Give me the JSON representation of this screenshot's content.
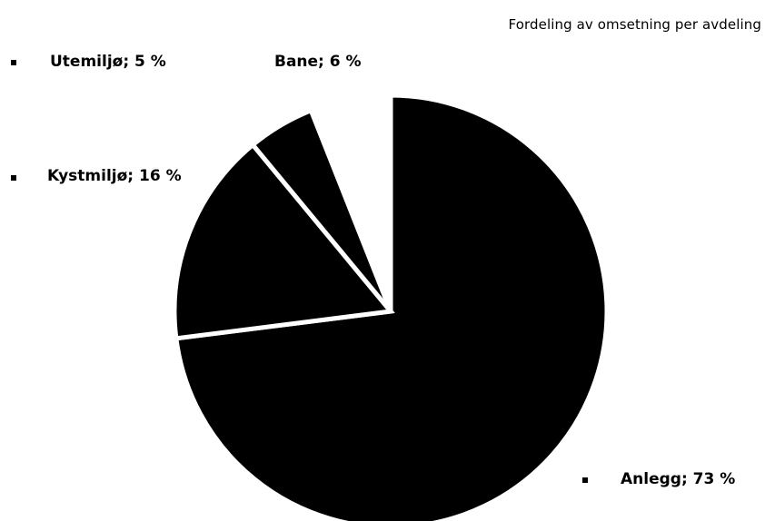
{
  "chart_data": {
    "type": "pie",
    "title": "Fordeling av omsetning per avdeling",
    "slices": [
      {
        "name": "Anlegg",
        "value": 73,
        "label": "Anlegg;  73 %",
        "color": "#000000"
      },
      {
        "name": "Kystmiljø",
        "value": 16,
        "label": "Kystmiljø; 16 %",
        "color": "#000000"
      },
      {
        "name": "Utemiljø",
        "value": 5,
        "label": "Utemiljø; 5 %",
        "color": "#000000"
      },
      {
        "name": "Bane",
        "value": 6,
        "label": "Bane; 6 %",
        "color": "#ffffff"
      }
    ],
    "legend": "none"
  }
}
